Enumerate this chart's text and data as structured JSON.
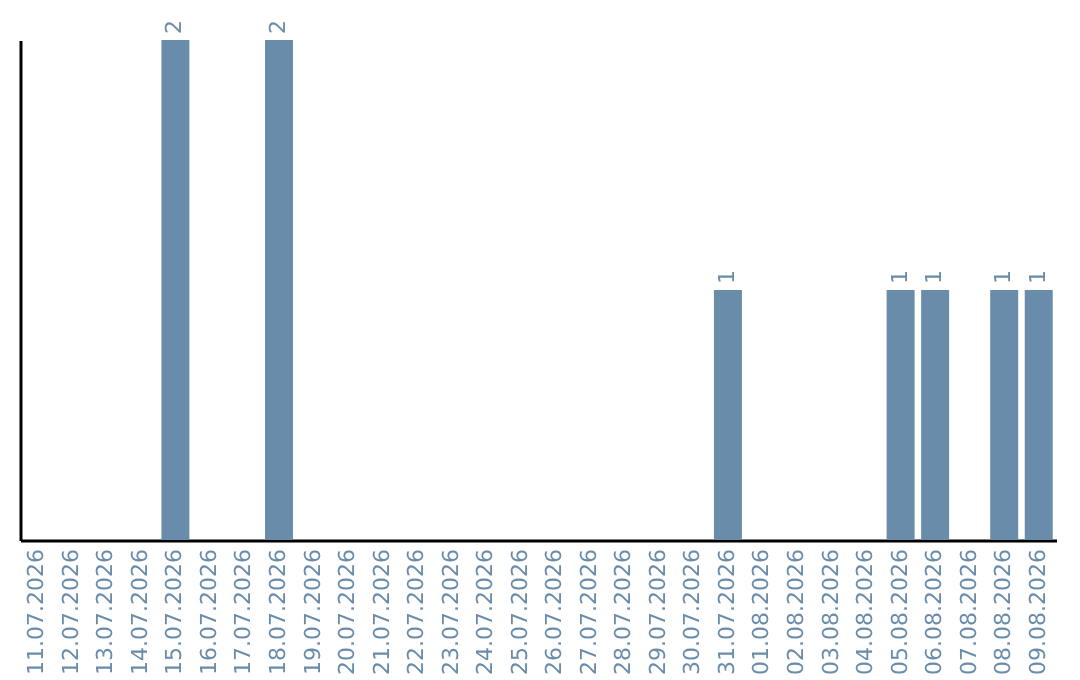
{
  "chart_data": {
    "type": "bar",
    "categories": [
      "11.07.2026",
      "12.07.2026",
      "13.07.2026",
      "14.07.2026",
      "15.07.2026",
      "16.07.2026",
      "17.07.2026",
      "18.07.2026",
      "19.07.2026",
      "20.07.2026",
      "21.07.2026",
      "22.07.2026",
      "23.07.2026",
      "24.07.2026",
      "25.07.2026",
      "26.07.2026",
      "27.07.2026",
      "28.07.2026",
      "29.07.2026",
      "30.07.2026",
      "31.07.2026",
      "01.08.2026",
      "02.08.2026",
      "03.08.2026",
      "04.08.2026",
      "05.08.2026",
      "06.08.2026",
      "07.08.2026",
      "08.08.2026",
      "09.08.2026"
    ],
    "values": [
      0,
      0,
      0,
      0,
      2,
      0,
      0,
      2,
      0,
      0,
      0,
      0,
      0,
      0,
      0,
      0,
      0,
      0,
      0,
      0,
      1,
      0,
      0,
      0,
      0,
      1,
      1,
      0,
      1,
      1
    ],
    "value_labels": [
      null,
      null,
      null,
      null,
      "2",
      null,
      null,
      "2",
      null,
      null,
      null,
      null,
      null,
      null,
      null,
      null,
      null,
      null,
      null,
      null,
      "1",
      null,
      null,
      null,
      null,
      "1",
      "1",
      null,
      "1",
      "1"
    ],
    "color": "#6a8cab",
    "ylim": [
      0,
      2
    ],
    "grid": false
  }
}
